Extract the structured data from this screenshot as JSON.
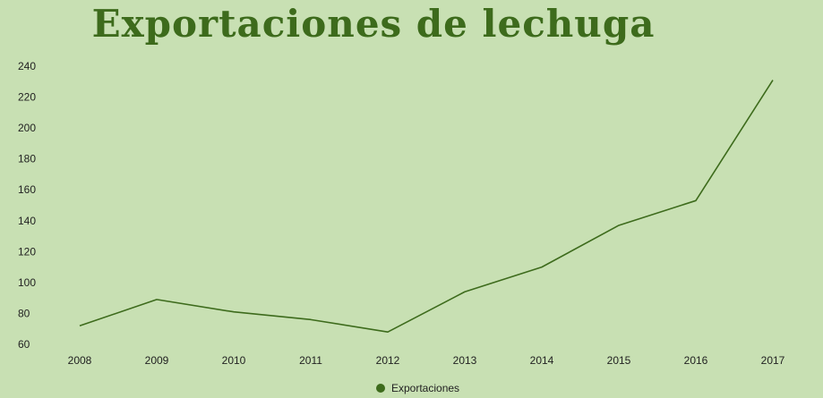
{
  "chart_data": {
    "type": "line",
    "title": "Exportaciones de lechuga",
    "xlabel": "",
    "ylabel": "",
    "categories": [
      "2008",
      "2009",
      "2010",
      "2011",
      "2012",
      "2013",
      "2014",
      "2015",
      "2016",
      "2017"
    ],
    "series": [
      {
        "name": "Exportaciones",
        "values": [
          72,
          89,
          81,
          76,
          68,
          94,
          110,
          137,
          153,
          231
        ],
        "color": "#3d6b1c"
      }
    ],
    "ylim": [
      60,
      240
    ],
    "yticks": [
      60,
      80,
      100,
      120,
      140,
      160,
      180,
      200,
      220,
      240
    ],
    "grid": false,
    "legend": "bottom-center"
  }
}
